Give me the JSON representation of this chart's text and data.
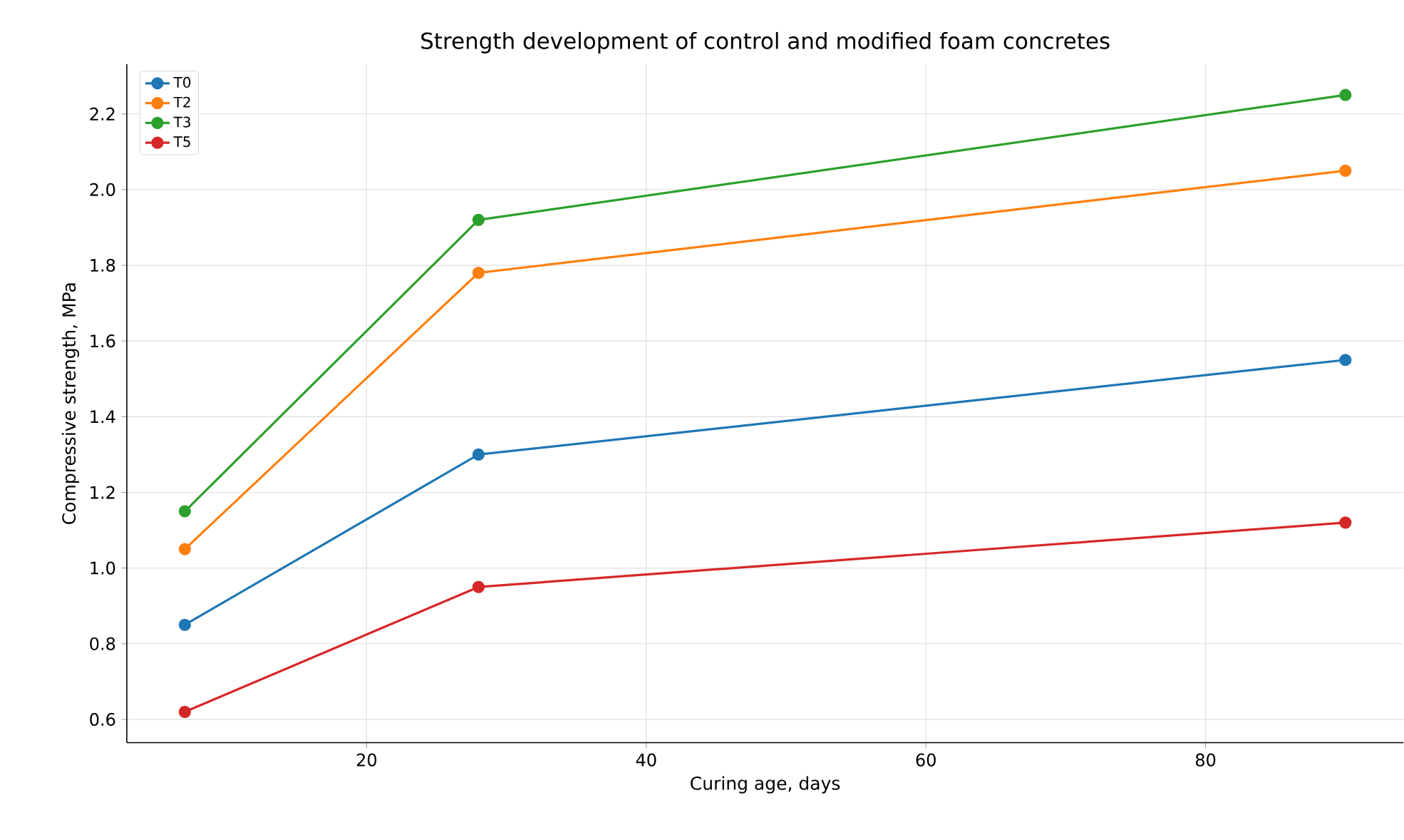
{
  "chart_data": {
    "type": "line",
    "title": "Strength development of control and modified foam concretes",
    "xlabel": "Curing age, days",
    "ylabel": "Compressive strength, MPa",
    "x": [
      7,
      28,
      90
    ],
    "series": [
      {
        "name": "T0",
        "color": "#1f77b4",
        "values": [
          0.85,
          1.3,
          1.55
        ]
      },
      {
        "name": "T2",
        "color": "#ff7f0e",
        "values": [
          1.05,
          1.78,
          2.05
        ]
      },
      {
        "name": "T3",
        "color": "#2ca02c",
        "values": [
          1.15,
          1.92,
          2.25
        ]
      },
      {
        "name": "T5",
        "color": "#d62728",
        "values": [
          0.62,
          0.95,
          1.12
        ]
      }
    ],
    "xlim": [
      2.85,
      94.15
    ],
    "ylim": [
      0.5385,
      2.3315
    ],
    "xticks": [
      20,
      40,
      60,
      80
    ],
    "yticks": [
      0.6,
      0.8,
      {
        "value": 1.0,
        "label": "1.0"
      },
      1.2,
      1.4,
      1.6,
      1.8,
      {
        "value": 2.0,
        "label": "2.0"
      },
      2.2
    ],
    "grid": true,
    "legend": "top left",
    "marker": "circle",
    "line_style": "solid"
  }
}
